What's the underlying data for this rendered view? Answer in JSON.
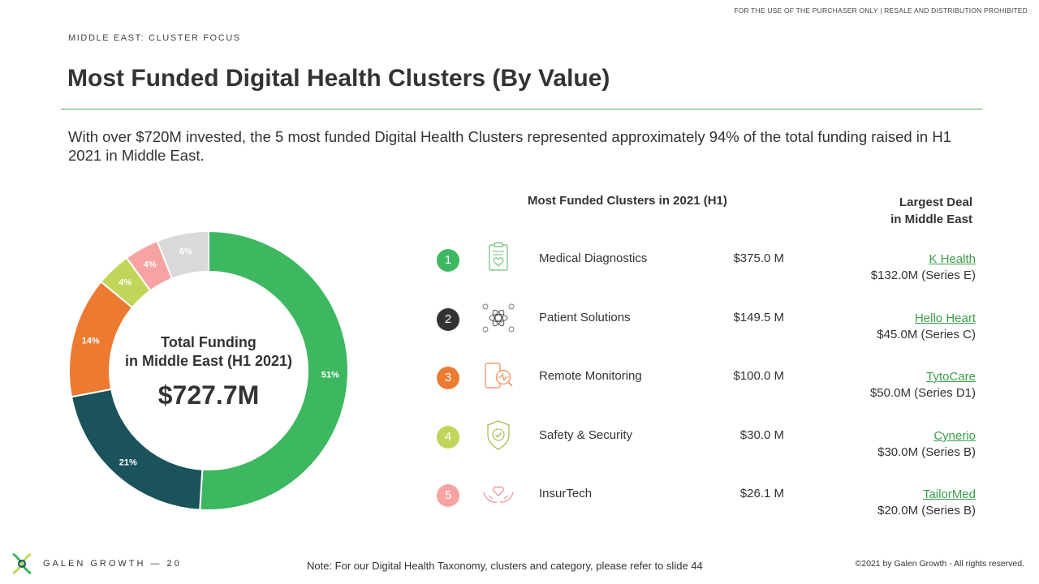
{
  "header": {
    "disclaimer": "FOR THE USE OF THE PURCHASER ONLY | RESALE AND DISTRIBUTION PROHIBITED",
    "section": "MIDDLE EAST: CLUSTER FOCUS",
    "title": "Most Funded Digital Health Clusters (By Value)",
    "summary": "With over $720M invested, the 5 most funded Digital Health Clusters represented approximately 94% of the total funding raised in H1 2021 in Middle East."
  },
  "center": {
    "line1": "Total Funding",
    "line2": "in Middle East (H1 2021)",
    "value": "$727.7M"
  },
  "table": {
    "col1_header": "Most Funded Clusters  in 2021 (H1)",
    "col2_header_line1": "Largest Deal",
    "col2_header_line2": "in Middle East",
    "rows": [
      {
        "rank": "1",
        "name": "Medical Diagnostics",
        "amount": "$375.0  M",
        "deal_company": "K Health",
        "deal_value": "$132.0M (Series E)",
        "color": "#3db760",
        "icon": "clipboard-heart-icon"
      },
      {
        "rank": "2",
        "name": "Patient Solutions",
        "amount": "$149.5  M",
        "deal_company": "Hello Heart",
        "deal_value": "$45.0M (Series C)",
        "color": "#333333",
        "icon": "patient-network-icon"
      },
      {
        "rank": "3",
        "name": "Remote Monitoring",
        "amount": "$100.0  M",
        "deal_company": "TytoCare",
        "deal_value": "$50.0M (Series D1)",
        "color": "#ec7a30",
        "icon": "phone-monitor-icon"
      },
      {
        "rank": "4",
        "name": "Safety & Security",
        "amount": "$30.0  M",
        "deal_company": "Cynerio",
        "deal_value": "$30.0M (Series B)",
        "color": "#c3d45a",
        "icon": "shield-check-icon"
      },
      {
        "rank": "5",
        "name": "InsurTech",
        "amount": "$26.1  M",
        "deal_company": "TailorMed",
        "deal_value": "$20.0M (Series B)",
        "color": "#f7a3a4",
        "icon": "hands-heart-icon"
      }
    ]
  },
  "chart_data": {
    "type": "pie",
    "donut": true,
    "slices": [
      {
        "label": "51%",
        "value": 51,
        "color": "#3db760"
      },
      {
        "label": "21%",
        "value": 21,
        "color": "#1a535c"
      },
      {
        "label": "14%",
        "value": 14,
        "color": "#ec7a30"
      },
      {
        "label": "4%",
        "value": 4,
        "color": "#c3d45a"
      },
      {
        "label": "4%",
        "value": 4,
        "color": "#f7a3a4"
      },
      {
        "label": "6%",
        "value": 6,
        "color": "#d9d9d9"
      }
    ]
  },
  "footer": {
    "brand": "GALEN GROWTH  —  20",
    "note": "Note: For our Digital Health Taxonomy, clusters and category, please refer to slide 44",
    "copyright": "©2021 by Galen Growth  - All rights reserved."
  }
}
